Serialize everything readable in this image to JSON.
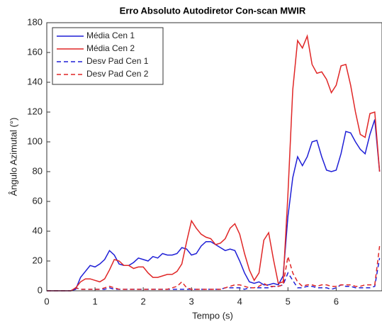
{
  "chart_data": {
    "type": "line",
    "title": "Erro Absoluto Autodiretor Con-scan MWIR",
    "xlabel": "Tempo (s)",
    "ylabel": "Ângulo Azimutal (°)",
    "x": [
      0,
      0.1,
      0.2,
      0.3,
      0.4,
      0.5,
      0.6,
      0.7,
      0.8,
      0.9,
      1,
      1.1,
      1.2,
      1.3,
      1.4,
      1.5,
      1.6,
      1.7,
      1.8,
      1.9,
      2,
      2.1,
      2.2,
      2.3,
      2.4,
      2.5,
      2.6,
      2.7,
      2.8,
      2.9,
      3,
      3.1,
      3.2,
      3.3,
      3.4,
      3.5,
      3.6,
      3.7,
      3.8,
      3.9,
      4,
      4.1,
      4.2,
      4.3,
      4.4,
      4.5,
      4.6,
      4.7,
      4.8,
      4.9,
      5,
      5.1,
      5.2,
      5.3,
      5.4,
      5.5,
      5.6,
      5.7,
      5.8,
      5.9,
      6,
      6.1,
      6.2,
      6.3,
      6.4,
      6.5,
      6.6,
      6.7,
      6.8,
      6.9
    ],
    "series": [
      {
        "name": "Média Cen 1",
        "color": "#1f1fd6",
        "dash": false,
        "values": [
          0,
          0,
          0,
          0,
          0,
          0,
          1,
          9,
          13,
          17,
          16,
          18,
          21,
          27,
          24,
          18,
          17,
          17,
          19,
          22,
          21,
          20,
          23,
          22,
          25,
          24,
          24,
          25,
          29,
          28,
          24,
          25,
          30,
          33,
          33,
          31,
          29,
          27,
          28,
          27,
          20,
          12,
          6,
          5,
          6,
          4,
          4,
          5,
          4,
          10,
          50,
          76,
          90,
          84,
          90,
          100,
          101,
          90,
          81,
          80,
          81,
          92,
          107,
          106,
          100,
          95,
          92,
          105,
          115,
          80
        ]
      },
      {
        "name": "Média Cen 2",
        "color": "#e02626",
        "dash": false,
        "values": [
          0,
          0,
          0,
          0,
          0,
          0,
          2,
          6,
          8,
          8,
          7,
          6,
          8,
          14,
          21,
          20,
          17,
          17,
          15,
          16,
          16,
          12,
          9,
          9,
          10,
          11,
          11,
          13,
          18,
          33,
          47,
          42,
          38,
          36,
          35,
          31,
          32,
          35,
          42,
          45,
          38,
          25,
          14,
          7,
          12,
          34,
          39,
          21,
          5,
          6,
          65,
          135,
          168,
          163,
          171,
          152,
          146,
          147,
          142,
          133,
          138,
          151,
          152,
          138,
          120,
          105,
          103,
          119,
          120,
          80
        ]
      },
      {
        "name": "Desv Pad Cen 1",
        "color": "#1f1fd6",
        "dash": true,
        "values": [
          0,
          0,
          0,
          0,
          0,
          0,
          2,
          1,
          1,
          1,
          1,
          1,
          1,
          2,
          1,
          1,
          1,
          1,
          1,
          1,
          1,
          1,
          1,
          1,
          1,
          1,
          1,
          1,
          1,
          1,
          1,
          1,
          1,
          1,
          1,
          1,
          1,
          2,
          2,
          2,
          2,
          1,
          2,
          2,
          2,
          2,
          2,
          3,
          3,
          4,
          12,
          7,
          2,
          2,
          3,
          3,
          2,
          2,
          2,
          1,
          2,
          4,
          3,
          3,
          2,
          2,
          2,
          2,
          3,
          22
        ]
      },
      {
        "name": "Desv Pad Cen 2",
        "color": "#e02626",
        "dash": true,
        "values": [
          0,
          0,
          0,
          0,
          0,
          0,
          2,
          1,
          1,
          1,
          1,
          1,
          2,
          3,
          2,
          1,
          1,
          1,
          1,
          1,
          1,
          1,
          1,
          1,
          1,
          1,
          2,
          3,
          6,
          2,
          1,
          1,
          1,
          1,
          1,
          1,
          1,
          2,
          3,
          4,
          4,
          3,
          2,
          2,
          3,
          5,
          3,
          3,
          3,
          4,
          23,
          12,
          6,
          3,
          4,
          4,
          3,
          4,
          4,
          3,
          3,
          4,
          4,
          4,
          3,
          3,
          4,
          4,
          4,
          30
        ]
      }
    ],
    "xlim": [
      0,
      6.95
    ],
    "xticks": [
      0,
      1,
      2,
      3,
      4,
      5,
      6
    ],
    "ylim": [
      0,
      180
    ],
    "yticks": [
      0,
      20,
      40,
      60,
      80,
      100,
      120,
      140,
      160,
      180
    ],
    "grid": false,
    "legend": "top-left"
  }
}
